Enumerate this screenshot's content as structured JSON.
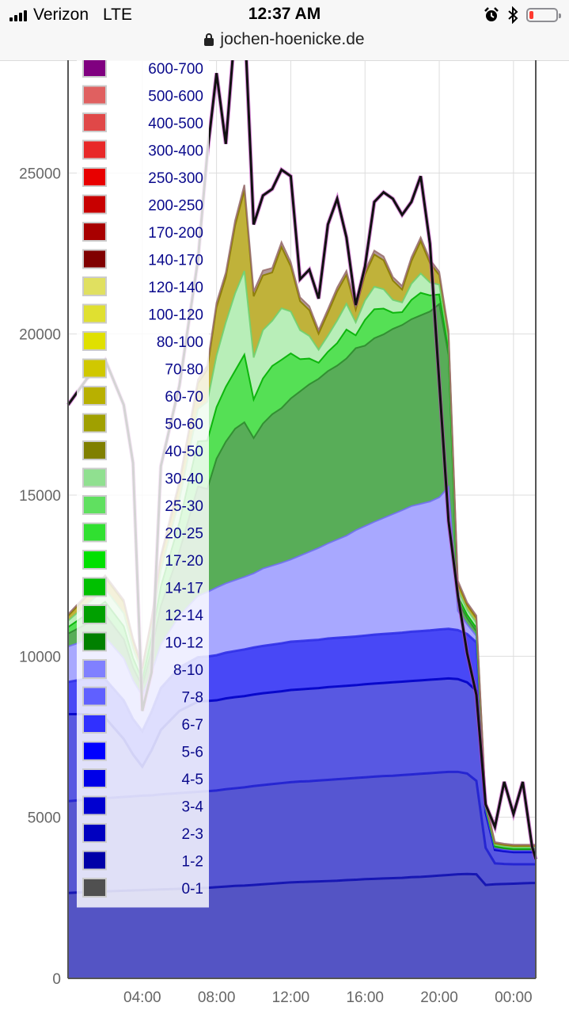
{
  "status_bar": {
    "carrier": "Verizon",
    "network": "LTE",
    "time": "12:37 AM",
    "url": "jochen-hoenicke.de",
    "battery_level": 0.15
  },
  "chart_data": {
    "type": "area",
    "stacked": true,
    "ylim": [
      0,
      28500
    ],
    "yticks": [
      0,
      5000,
      10000,
      15000,
      20000,
      25000
    ],
    "ytick_labels": [
      "0",
      "5000",
      "10000",
      "15000",
      "20000",
      "25000"
    ],
    "xlim": [
      0.0,
      25.2
    ],
    "xticks": [
      4,
      8,
      12,
      16,
      20,
      24
    ],
    "xtick_labels": [
      "04:00",
      "08:00",
      "12:00",
      "16:00",
      "20:00",
      "00:00"
    ],
    "grid": true,
    "legend_position": "top-left",
    "legend": [
      {
        "label": "600-700",
        "color": "#800080"
      },
      {
        "label": "500-600",
        "color": "#e06060"
      },
      {
        "label": "400-500",
        "color": "#e04848"
      },
      {
        "label": "300-400",
        "color": "#e82828"
      },
      {
        "label": "250-300",
        "color": "#e80000"
      },
      {
        "label": "200-250",
        "color": "#c80000"
      },
      {
        "label": "170-200",
        "color": "#a80000"
      },
      {
        "label": "140-170",
        "color": "#800000"
      },
      {
        "label": "120-140",
        "color": "#e0e060"
      },
      {
        "label": "100-120",
        "color": "#e0e030"
      },
      {
        "label": "80-100",
        "color": "#e0e000"
      },
      {
        "label": "70-80",
        "color": "#d0c800"
      },
      {
        "label": "60-70",
        "color": "#b8b000"
      },
      {
        "label": "50-60",
        "color": "#a0a000"
      },
      {
        "label": "40-50",
        "color": "#808000"
      },
      {
        "label": "30-40",
        "color": "#90e090"
      },
      {
        "label": "25-30",
        "color": "#60e060"
      },
      {
        "label": "20-25",
        "color": "#30e030"
      },
      {
        "label": "17-20",
        "color": "#00e000"
      },
      {
        "label": "14-17",
        "color": "#00c000"
      },
      {
        "label": "12-14",
        "color": "#00a000"
      },
      {
        "label": "10-12",
        "color": "#008000"
      },
      {
        "label": "8-10",
        "color": "#8080ff"
      },
      {
        "label": "7-8",
        "color": "#6060ff"
      },
      {
        "label": "6-7",
        "color": "#3030ff"
      },
      {
        "label": "5-6",
        "color": "#0000ff"
      },
      {
        "label": "4-5",
        "color": "#0000e8"
      },
      {
        "label": "3-4",
        "color": "#0000d0"
      },
      {
        "label": "2-3",
        "color": "#0000c0"
      },
      {
        "label": "1-2",
        "color": "#0000a8"
      },
      {
        "label": "0-1",
        "color": "#505050"
      }
    ],
    "x": [
      0.0,
      1.0,
      2.0,
      3.0,
      3.5,
      4.0,
      4.5,
      5.0,
      6.0,
      7.0,
      7.5,
      8.0,
      8.5,
      9.0,
      9.5,
      10.0,
      10.5,
      11.0,
      11.5,
      12.0,
      12.5,
      13.0,
      13.5,
      14.0,
      14.5,
      15.0,
      15.5,
      16.0,
      16.5,
      17.0,
      17.5,
      18.0,
      18.5,
      19.0,
      19.5,
      20.0,
      20.5,
      21.0,
      21.5,
      22.0,
      22.5,
      23.0,
      23.5,
      24.0,
      24.5,
      25.0,
      25.2
    ],
    "series": [
      {
        "name": "0-1",
        "color": "#5454c4",
        "values": [
          2650,
          2680,
          2700,
          2720,
          2730,
          2740,
          2750,
          2760,
          2780,
          2800,
          2810,
          2830,
          2850,
          2870,
          2880,
          2900,
          2920,
          2940,
          2960,
          2980,
          2990,
          3000,
          3010,
          3020,
          3030,
          3050,
          3060,
          3080,
          3090,
          3100,
          3110,
          3120,
          3140,
          3150,
          3170,
          3190,
          3210,
          3230,
          3240,
          3230,
          2900,
          2920,
          2930,
          2940,
          2950,
          2960,
          2960
        ]
      },
      {
        "name": "1-2",
        "color": "#5656d2",
        "values": [
          2850,
          2870,
          2890,
          2910,
          2920,
          2930,
          2930,
          2950,
          2970,
          2990,
          3000,
          3000,
          3020,
          3030,
          3050,
          3070,
          3080,
          3090,
          3100,
          3110,
          3120,
          3120,
          3130,
          3140,
          3150,
          3150,
          3160,
          3160,
          3170,
          3180,
          3180,
          3190,
          3190,
          3200,
          3200,
          3200,
          3200,
          3180,
          3120,
          2900,
          1150,
          650,
          620,
          600,
          590,
          580,
          580
        ]
      },
      {
        "name": "3-4",
        "color": "#5858e2",
        "values": [
          2700,
          2650,
          2500,
          1800,
          1300,
          900,
          1400,
          2000,
          2550,
          2800,
          2800,
          2800,
          2820,
          2830,
          2830,
          2840,
          2850,
          2850,
          2850,
          2860,
          2860,
          2870,
          2870,
          2880,
          2880,
          2880,
          2880,
          2890,
          2890,
          2890,
          2900,
          2900,
          2900,
          2900,
          2900,
          2900,
          2900,
          2880,
          2830,
          2800,
          1100,
          420,
          400,
          380,
          380,
          380,
          380
        ]
      },
      {
        "name": "6-7",
        "color": "#4848f6",
        "values": [
          1000,
          1100,
          1200,
          1200,
          1100,
          1100,
          1200,
          1300,
          1350,
          1380,
          1380,
          1400,
          1420,
          1430,
          1450,
          1460,
          1470,
          1480,
          1490,
          1500,
          1500,
          1500,
          1500,
          1510,
          1510,
          1510,
          1510,
          1510,
          1520,
          1520,
          1520,
          1520,
          1530,
          1530,
          1530,
          1540,
          1540,
          1520,
          1500,
          1500,
          100,
          50,
          40,
          40,
          40,
          40,
          40
        ]
      },
      {
        "name": "8-10",
        "color": "#a8a8ff",
        "values": [
          1100,
          1200,
          1300,
          1300,
          1200,
          1100,
          1200,
          1350,
          1600,
          1900,
          2000,
          2100,
          2150,
          2200,
          2250,
          2300,
          2400,
          2450,
          2500,
          2550,
          2650,
          2750,
          2850,
          2950,
          3050,
          3150,
          3300,
          3400,
          3500,
          3600,
          3700,
          3800,
          3900,
          3950,
          4000,
          4100,
          4400,
          600,
          300,
          200,
          30,
          20,
          20,
          20,
          20,
          20,
          20
        ]
      },
      {
        "name": "10-12",
        "color": "#58ad58",
        "values": [
          400,
          500,
          700,
          600,
          400,
          300,
          700,
          1200,
          2000,
          3400,
          3200,
          4000,
          4400,
          4700,
          4800,
          4200,
          4500,
          4700,
          4800,
          5000,
          5100,
          5200,
          5250,
          5350,
          5400,
          5500,
          5650,
          5600,
          5700,
          5700,
          5750,
          5750,
          5800,
          5850,
          5900,
          6000,
          4100,
          300,
          200,
          150,
          20,
          20,
          20,
          20,
          20,
          20,
          20
        ]
      },
      {
        "name": "20-25",
        "color": "#55e055",
        "values": [
          200,
          300,
          400,
          400,
          300,
          200,
          400,
          600,
          900,
          1400,
          1500,
          1600,
          1700,
          1800,
          2100,
          1200,
          1400,
          1500,
          1500,
          1400,
          1000,
          800,
          500,
          600,
          700,
          900,
          400,
          800,
          900,
          800,
          500,
          400,
          600,
          700,
          500,
          300,
          200,
          150,
          100,
          100,
          20,
          20,
          20,
          20,
          20,
          20,
          20
        ]
      },
      {
        "name": "30-40",
        "color": "#b8eeb8",
        "values": [
          200,
          300,
          400,
          400,
          300,
          200,
          300,
          500,
          700,
          1000,
          1200,
          1600,
          2000,
          2400,
          2600,
          1300,
          1500,
          1400,
          1600,
          1300,
          900,
          700,
          400,
          500,
          700,
          800,
          400,
          600,
          700,
          600,
          400,
          300,
          500,
          600,
          400,
          300,
          200,
          200,
          150,
          150,
          50,
          40,
          40,
          40,
          40,
          40,
          40
        ]
      },
      {
        "name": "40-50",
        "color": "#c0b23a",
        "values": [
          150,
          250,
          350,
          350,
          250,
          150,
          250,
          400,
          500,
          800,
          1000,
          1500,
          1400,
          2100,
          2500,
          1900,
          1700,
          1500,
          1900,
          1400,
          900,
          800,
          500,
          700,
          900,
          900,
          400,
          800,
          1000,
          900,
          600,
          400,
          700,
          1000,
          600,
          300,
          250,
          200,
          150,
          150,
          60,
          50,
          50,
          50,
          50,
          50,
          50
        ]
      },
      {
        "name": "70-80",
        "color": "#b39a9a",
        "values": [
          50,
          60,
          70,
          70,
          60,
          50,
          60,
          80,
          100,
          120,
          130,
          140,
          150,
          160,
          170,
          150,
          150,
          140,
          150,
          130,
          120,
          120,
          110,
          120,
          120,
          120,
          110,
          120,
          120,
          120,
          110,
          110,
          120,
          120,
          110,
          100,
          100,
          90,
          80,
          80,
          50,
          40,
          40,
          40,
          40,
          40,
          40
        ]
      }
    ],
    "total_line": [
      17800,
      18600,
      19200,
      17800,
      16000,
      8300,
      9500,
      15900,
      18400,
      22300,
      25600,
      28100,
      25900,
      29500,
      29900,
      23400,
      24300,
      24500,
      25100,
      24900,
      21700,
      22000,
      21100,
      23400,
      24200,
      23000,
      20900,
      22100,
      24100,
      24400,
      24200,
      23700,
      24100,
      24900,
      22800,
      18500,
      14200,
      11900,
      10100,
      8800,
      5400,
      4700,
      6100,
      5100,
      6100,
      4100,
      3700
    ]
  }
}
